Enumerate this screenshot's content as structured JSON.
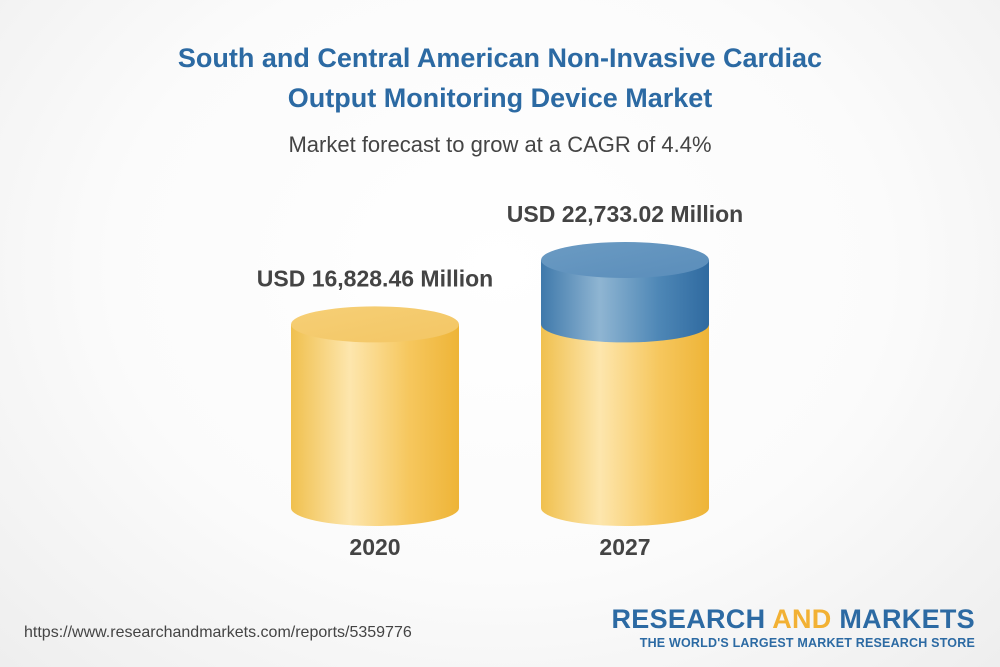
{
  "header": {
    "title_line1": "South and Central American Non-Invasive Cardiac",
    "title_line2": "Output Monitoring Device Market",
    "subtitle": "Market forecast to grow at a CAGR of 4.4%"
  },
  "colors": {
    "title": "#2c6aa3",
    "base_cylinder": "#f5c76a",
    "growth_cylinder": "#4e86b4",
    "text_dark": "#444444",
    "brand_accent": "#f2b134"
  },
  "chart_data": {
    "type": "bar",
    "style": "3d-cylinder",
    "title": "South and Central American Non-Invasive Cardiac Output Monitoring Device Market",
    "subtitle": "Market forecast to grow at a CAGR of 4.4%",
    "categories": [
      "2020",
      "2027"
    ],
    "values": [
      16828.46,
      22733.02
    ],
    "value_labels": [
      "USD 16,828.46 Million",
      "USD 22,733.02 Million"
    ],
    "unit": "USD Million",
    "cagr_percent": 4.4,
    "xlabel": "",
    "ylabel": "",
    "ylim": [
      0,
      22733.02
    ],
    "grid": false
  },
  "footer": {
    "source_url": "https://www.researchandmarkets.com/reports/5359776",
    "brand_part1": "RESEARCH ",
    "brand_part2": "AND",
    "brand_part3": " MARKETS",
    "brand_tagline": "THE WORLD'S LARGEST MARKET RESEARCH STORE"
  }
}
